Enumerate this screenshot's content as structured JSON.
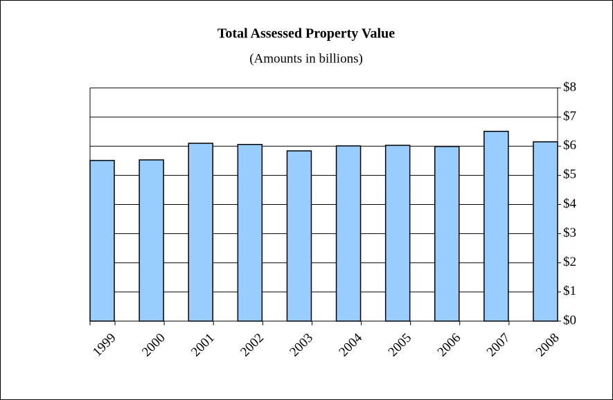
{
  "chart_data": {
    "type": "bar",
    "title": "Total Assessed Property Value",
    "subtitle": "(Amounts in billions)",
    "categories": [
      "1999",
      "2000",
      "2001",
      "2002",
      "2003",
      "2004",
      "2005",
      "2006",
      "2007",
      "2008"
    ],
    "values": [
      5.51,
      5.53,
      6.1,
      6.06,
      5.84,
      6.01,
      6.03,
      5.99,
      6.51,
      6.15
    ],
    "color": "#99ccff",
    "ylim": [
      0,
      8
    ],
    "yticks": [
      {
        "value": 0,
        "label": "$0"
      },
      {
        "value": 1,
        "label": "$1"
      },
      {
        "value": 2,
        "label": "$2"
      },
      {
        "value": 3,
        "label": "$3"
      },
      {
        "value": 4,
        "label": "$4"
      },
      {
        "value": 5,
        "label": "$5"
      },
      {
        "value": 6,
        "label": "$6"
      },
      {
        "value": 7,
        "label": "$7"
      },
      {
        "value": 8,
        "label": "$8"
      }
    ],
    "grid": true
  }
}
